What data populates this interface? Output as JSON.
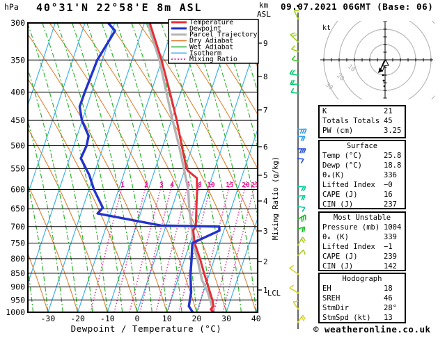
{
  "header": {
    "pressure_unit": "hPa",
    "title": "40°31'N 22°58'E 8m ASL",
    "km_label": "km",
    "asl_label": "ASL",
    "datetime": "09.07.2021 06GMT (Base: 06)"
  },
  "legend": [
    {
      "label": "Temperature",
      "color": "#e62e36",
      "style": "thick"
    },
    {
      "label": "Dewpoint",
      "color": "#2333cc",
      "style": "thick"
    },
    {
      "label": "Parcel Trajectory",
      "color": "#b4b4b4",
      "style": "thick"
    },
    {
      "label": "Dry Adiabat",
      "color": "#e08030",
      "style": "thin"
    },
    {
      "label": "Wet Adiabat",
      "color": "#2eb42e",
      "style": "thin"
    },
    {
      "label": "Isotherm",
      "color": "#3eb2ee",
      "style": "thin"
    },
    {
      "label": "Mixing Ratio",
      "color": "#e6148c",
      "style": "dotted"
    }
  ],
  "chart_data": {
    "type": "skewt-log-p-sounding",
    "pressure_ticks": [
      300,
      350,
      400,
      450,
      500,
      550,
      600,
      650,
      700,
      750,
      800,
      850,
      900,
      950,
      1000
    ],
    "pressure_scale": "log",
    "temp_ticks": [
      -30,
      -20,
      -10,
      0,
      10,
      20,
      30,
      40
    ],
    "x_axis_label": "Dewpoint / Temperature (°C)",
    "mixing_axis_label": "Mixing Ratio (g/kg)",
    "lcl_label": "LCL",
    "km_ticks": [
      {
        "km": 9,
        "y": 62
      },
      {
        "km": 8,
        "y": 110
      },
      {
        "km": 7,
        "y": 158
      },
      {
        "km": 6,
        "y": 211
      },
      {
        "km": 5,
        "y": 252
      },
      {
        "km": 4,
        "y": 289
      },
      {
        "km": 3,
        "y": 332
      },
      {
        "km": 2,
        "y": 376
      },
      {
        "km": 1,
        "y": 417
      }
    ],
    "mixing_ratio_lines": [
      {
        "g_per_kg": 1,
        "x": 176
      },
      {
        "g_per_kg": 2,
        "x": 210
      },
      {
        "g_per_kg": 3,
        "x": 232
      },
      {
        "g_per_kg": 4,
        "x": 247
      },
      {
        "g_per_kg": 6,
        "x": 270
      },
      {
        "g_per_kg": 8,
        "x": 287
      },
      {
        "g_per_kg": 10,
        "x": 303
      },
      {
        "g_per_kg": 15,
        "x": 330
      },
      {
        "g_per_kg": 20,
        "x": 353
      },
      {
        "g_per_kg": 25,
        "x": 366
      }
    ],
    "series": {
      "temperature_c": [
        [
          300,
          -28.2
        ],
        [
          350,
          -20.1
        ],
        [
          400,
          -13.7
        ],
        [
          450,
          -8.2
        ],
        [
          500,
          -3.7
        ],
        [
          550,
          0.5
        ],
        [
          555,
          1.2
        ],
        [
          572,
          5.0
        ],
        [
          600,
          6.4
        ],
        [
          650,
          8.3
        ],
        [
          700,
          10.1
        ],
        [
          710,
          9.6
        ],
        [
          750,
          11.6
        ],
        [
          800,
          15.1
        ],
        [
          850,
          18.1
        ],
        [
          900,
          21.1
        ],
        [
          950,
          23.9
        ],
        [
          975,
          25.0
        ],
        [
          988,
          24.4
        ],
        [
          1000,
          25.8
        ]
      ],
      "dewpoint_c": [
        [
          300,
          -42.2
        ],
        [
          310,
          -39.0
        ],
        [
          350,
          -41.7
        ],
        [
          400,
          -42.3
        ],
        [
          425,
          -42.4
        ],
        [
          450,
          -40.1
        ],
        [
          480,
          -36.1
        ],
        [
          500,
          -35.7
        ],
        [
          527,
          -36.2
        ],
        [
          565,
          -31.5
        ],
        [
          600,
          -28.3
        ],
        [
          647,
          -23.3
        ],
        [
          663,
          -24.4
        ],
        [
          697,
          -1.7
        ],
        [
          700,
          18.0
        ],
        [
          712,
          18.5
        ],
        [
          750,
          10.8
        ],
        [
          807,
          12.5
        ],
        [
          855,
          13.7
        ],
        [
          920,
          15.9
        ],
        [
          975,
          16.7
        ],
        [
          1000,
          18.7
        ]
      ],
      "parcel_c": [
        [
          300,
          -28.9
        ],
        [
          350,
          -20.8
        ],
        [
          400,
          -14.9
        ],
        [
          450,
          -9.6
        ],
        [
          500,
          -4.6
        ],
        [
          550,
          -0.4
        ],
        [
          600,
          3.4
        ],
        [
          650,
          5.9
        ],
        [
          702,
          8.8
        ],
        [
          755,
          11.4
        ],
        [
          805,
          14.5
        ],
        [
          875,
          18.2
        ],
        [
          920,
          21.5
        ],
        [
          1000,
          25.8
        ]
      ]
    },
    "colors": {
      "temperature": "#e62e36",
      "dewpoint": "#2333cc",
      "parcel": "#b4b4b4",
      "dry_adiabat": "#e08030",
      "wet_adiabat": "#2eb42e",
      "isotherm": "#3eb2ee",
      "mixing_ratio": "#e6148c",
      "grid": "#000000"
    }
  },
  "hodograph": {
    "unit_label": "kt",
    "ring_labels": [
      "10",
      "20",
      "30"
    ],
    "ring_spacing_kt": 10
  },
  "indices_tables": [
    {
      "header": null,
      "rows": [
        [
          "K",
          "21"
        ],
        [
          "Totals Totals",
          "45"
        ],
        [
          "PW (cm)",
          "3.25"
        ]
      ]
    },
    {
      "header": "Surface",
      "rows": [
        [
          "Temp (°C)",
          "25.8"
        ],
        [
          "Dewp (°C)",
          "18.8"
        ],
        [
          "θₑ(K)",
          "336"
        ],
        [
          "Lifted Index",
          "−0"
        ],
        [
          "CAPE (J)",
          "16"
        ],
        [
          "CIN (J)",
          "237"
        ]
      ]
    },
    {
      "header": "Most Unstable",
      "rows": [
        [
          "Pressure (mb)",
          "1004"
        ],
        [
          "θₑ (K)",
          "339"
        ],
        [
          "Lifted Index",
          "−1"
        ],
        [
          "CAPE (J)",
          "239"
        ],
        [
          "CIN (J)",
          "142"
        ]
      ]
    },
    {
      "header": "Hodograph",
      "rows": [
        [
          "EH",
          "18"
        ],
        [
          "SREH",
          "46"
        ],
        [
          "StmDir",
          "28°"
        ],
        [
          "StmSpd (kt)",
          "13"
        ]
      ]
    }
  ],
  "wind_barbs": [
    {
      "y": 27,
      "c": "#9ed41e",
      "a": 245,
      "s": 13,
      "n": 1
    },
    {
      "y": 60,
      "c": "#9ed41e",
      "a": 222,
      "s": 15,
      "n": 2
    },
    {
      "y": 74,
      "c": "#9ed41e",
      "a": 200,
      "s": 10,
      "n": 1
    },
    {
      "y": 88,
      "c": "#3cc62e",
      "a": 195,
      "s": 9,
      "n": 1
    },
    {
      "y": 108,
      "c": "#00ca6a",
      "a": 188,
      "s": 12,
      "n": 2
    },
    {
      "y": 121,
      "c": "#00ca6a",
      "a": 178,
      "s": 11,
      "n": 2
    },
    {
      "y": 134,
      "c": "#00ca6a",
      "a": 186,
      "s": 10,
      "n": 1
    },
    {
      "y": 186,
      "c": "#2e9cf0",
      "a": 358,
      "s": 12,
      "n": 3
    },
    {
      "y": 196,
      "c": "#2e9cf0",
      "a": 2,
      "s": 10,
      "n": 2
    },
    {
      "y": 214,
      "c": "#2b4fd8",
      "a": 0,
      "s": 11,
      "n": 3
    },
    {
      "y": 228,
      "c": "#2b4fd8",
      "a": 5,
      "s": 8,
      "n": 1
    },
    {
      "y": 268,
      "c": "#00c696",
      "a": 3,
      "s": 11,
      "n": 2
    },
    {
      "y": 282,
      "c": "#00c696",
      "a": 355,
      "s": 10,
      "n": 2
    },
    {
      "y": 297,
      "c": "#00c696",
      "a": 8,
      "s": 10,
      "n": 1
    },
    {
      "y": 315,
      "c": "#12c01e",
      "a": 330,
      "s": 12,
      "n": 3
    },
    {
      "y": 329,
      "c": "#12c01e",
      "a": 345,
      "s": 10,
      "n": 2
    },
    {
      "y": 352,
      "c": "#aacc1e",
      "a": 300,
      "s": 13,
      "n": 2
    },
    {
      "y": 367,
      "c": "#aacc1e",
      "a": 315,
      "s": 11,
      "n": 1
    },
    {
      "y": 394,
      "c": "#d6d22e",
      "a": 215,
      "s": 15,
      "n": 1
    },
    {
      "y": 421,
      "c": "#d6d22e",
      "a": 210,
      "s": 14,
      "n": 1
    },
    {
      "y": 444,
      "c": "#d6d22e",
      "a": 235,
      "s": 12,
      "n": 1
    },
    {
      "y": 463,
      "c": "#d6d22e",
      "a": 305,
      "s": 12,
      "n": 2
    }
  ],
  "footer": {
    "credit": "© weatheronline.co.uk"
  }
}
